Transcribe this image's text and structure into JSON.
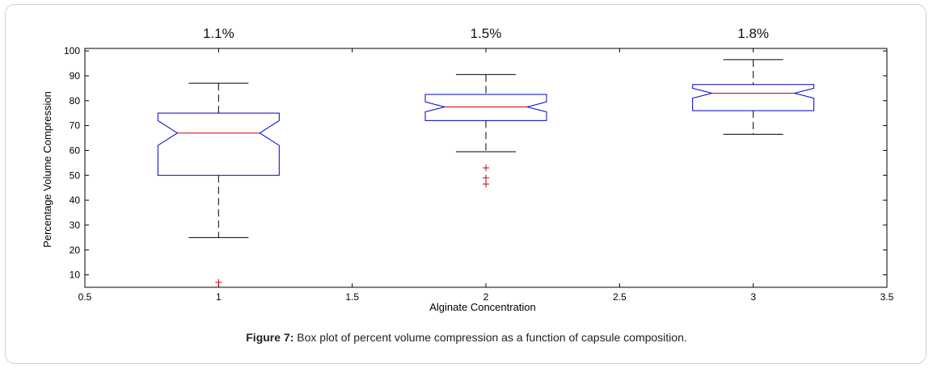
{
  "caption": {
    "label": "Figure 7:",
    "text": " Box plot of percent volume compression as a function of capsule composition."
  },
  "chart_data": {
    "type": "boxplot",
    "notched": true,
    "xlabel": "Alginate Concentration",
    "ylabel": "Percentage Volume Compression",
    "xlim": [
      0.5,
      3.5
    ],
    "ylim": [
      5,
      101
    ],
    "xticks": [
      0.5,
      1,
      1.5,
      2,
      2.5,
      3,
      3.5
    ],
    "yticks": [
      10,
      20,
      30,
      40,
      50,
      60,
      70,
      80,
      90,
      100
    ],
    "tick_labels_x": [
      "0.5",
      "1",
      "1.5",
      "2",
      "2.5",
      "3",
      "3.5"
    ],
    "tick_labels_y": [
      "10",
      "20",
      "30",
      "40",
      "50",
      "60",
      "70",
      "80",
      "90",
      "100"
    ],
    "colors": {
      "box": "#0000cc",
      "median": "#cc0000",
      "whisker": "#000000",
      "outlier": "#cc0000",
      "axis": "#000000"
    },
    "boxes": [
      {
        "x": 1,
        "label": "1.1%",
        "q1": 50,
        "median": 67,
        "q3": 75,
        "notch_low": 62,
        "notch_high": 72,
        "whisker_low": 25,
        "whisker_high": 87,
        "outliers": [
          7
        ]
      },
      {
        "x": 2,
        "label": "1.5%",
        "q1": 72,
        "median": 77.5,
        "q3": 82.5,
        "notch_low": 75.5,
        "notch_high": 79.5,
        "whisker_low": 59.5,
        "whisker_high": 90.5,
        "outliers": [
          53,
          49,
          46.5
        ]
      },
      {
        "x": 3,
        "label": "1.8%",
        "q1": 76,
        "median": 83,
        "q3": 86.5,
        "notch_low": 81,
        "notch_high": 85,
        "whisker_low": 66.5,
        "whisker_high": 96.5,
        "outliers": []
      }
    ]
  }
}
